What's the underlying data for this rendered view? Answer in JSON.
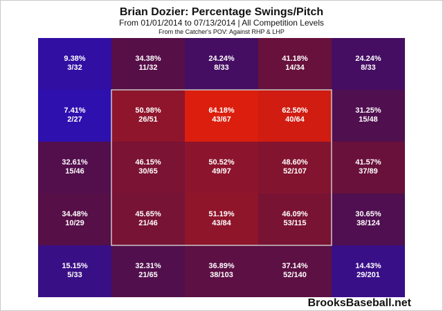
{
  "title": "Brian Dozier: Percentage Swings/Pitch",
  "subtitle": "From 01/01/2014 to 07/13/2014 | All Competition Levels",
  "caption": "From the Catcher's POV:  Against RHP & LHP",
  "brand": "BrooksBaseball.net",
  "chart_data": {
    "type": "heatmap",
    "title": "Brian Dozier: Percentage Swings/Pitch",
    "grid_rows": 5,
    "grid_cols": 5,
    "strike_zone": {
      "rows": [
        1,
        3
      ],
      "cols": [
        1,
        3
      ]
    },
    "cells": [
      [
        {
          "pct": "9.38%",
          "frac": "3/32"
        },
        {
          "pct": "34.38%",
          "frac": "11/32"
        },
        {
          "pct": "24.24%",
          "frac": "8/33"
        },
        {
          "pct": "41.18%",
          "frac": "14/34"
        },
        {
          "pct": "24.24%",
          "frac": "8/33"
        }
      ],
      [
        {
          "pct": "7.41%",
          "frac": "2/27"
        },
        {
          "pct": "50.98%",
          "frac": "26/51"
        },
        {
          "pct": "64.18%",
          "frac": "43/67"
        },
        {
          "pct": "62.50%",
          "frac": "40/64"
        },
        {
          "pct": "31.25%",
          "frac": "15/48"
        }
      ],
      [
        {
          "pct": "32.61%",
          "frac": "15/46"
        },
        {
          "pct": "46.15%",
          "frac": "30/65"
        },
        {
          "pct": "50.52%",
          "frac": "49/97"
        },
        {
          "pct": "48.60%",
          "frac": "52/107"
        },
        {
          "pct": "41.57%",
          "frac": "37/89"
        }
      ],
      [
        {
          "pct": "34.48%",
          "frac": "10/29"
        },
        {
          "pct": "45.65%",
          "frac": "21/46"
        },
        {
          "pct": "51.19%",
          "frac": "43/84"
        },
        {
          "pct": "46.09%",
          "frac": "53/115"
        },
        {
          "pct": "30.65%",
          "frac": "38/124"
        }
      ],
      [
        {
          "pct": "15.15%",
          "frac": "5/33"
        },
        {
          "pct": "32.31%",
          "frac": "21/65"
        },
        {
          "pct": "36.89%",
          "frac": "38/103"
        },
        {
          "pct": "37.14%",
          "frac": "52/140"
        },
        {
          "pct": "14.43%",
          "frac": "29/201"
        }
      ]
    ],
    "colors": {
      "low": "#1e10e0",
      "high": "#e01e0a",
      "zone_border": "#c8c8c8",
      "text": "#ffffff"
    }
  }
}
